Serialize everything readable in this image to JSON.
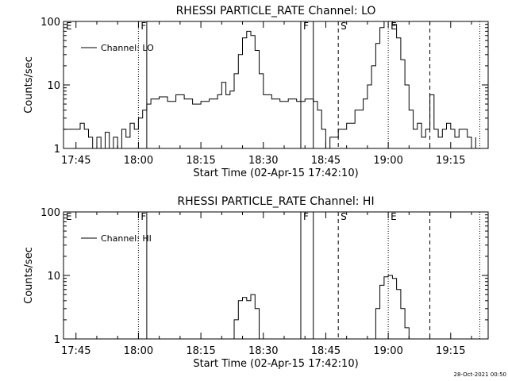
{
  "footer_timestamp": "28-Oct-2021 00:50",
  "chart_data": [
    {
      "type": "line",
      "title": "RHESSI PARTICLE_RATE Channel: LO",
      "xlabel": "Start Time (02-Apr-15 17:42:10)",
      "ylabel": "Counts/sec",
      "yscale": "log",
      "ylim": [
        1,
        100
      ],
      "xlim": [
        "17:42",
        "19:24"
      ],
      "x_tick_labels": [
        "17:45",
        "18:00",
        "18:15",
        "18:30",
        "18:45",
        "19:00",
        "19:15"
      ],
      "y_tick_labels": [
        "1",
        "10",
        "100"
      ],
      "legend": {
        "placement": "top-left",
        "entries": [
          "Channel: LO"
        ]
      },
      "markers": [
        {
          "label": "E",
          "time": "17:42",
          "style": "solid-label-only"
        },
        {
          "label": "F",
          "time": "18:00",
          "style": "dotted"
        },
        {
          "label": "",
          "time": "18:02",
          "style": "solid"
        },
        {
          "label": "F",
          "time": "18:39",
          "style": "solid"
        },
        {
          "label": "",
          "time": "18:42",
          "style": "solid"
        },
        {
          "label": "S",
          "time": "18:48",
          "style": "dashed"
        },
        {
          "label": "E",
          "time": "19:00",
          "style": "dotted"
        },
        {
          "label": "",
          "time": "19:10",
          "style": "dashed"
        },
        {
          "label": "",
          "time": "19:22",
          "style": "dotted"
        }
      ],
      "series": [
        {
          "name": "Channel: LO",
          "points": [
            [
              "17:42",
              2
            ],
            [
              "17:45",
              2
            ],
            [
              "17:46",
              2.5
            ],
            [
              "17:47",
              2
            ],
            [
              "17:48",
              1.5
            ],
            [
              "17:49",
              1
            ],
            [
              "17:50",
              1.5
            ],
            [
              "17:51",
              1
            ],
            [
              "17:52",
              1.8
            ],
            [
              "17:53",
              1
            ],
            [
              "17:54",
              1.5
            ],
            [
              "17:55",
              1
            ],
            [
              "17:56",
              2
            ],
            [
              "17:57",
              1.5
            ],
            [
              "17:58",
              2.5
            ],
            [
              "17:59",
              2
            ],
            [
              "18:00",
              3
            ],
            [
              "18:01",
              4
            ],
            [
              "18:02",
              5
            ],
            [
              "18:03",
              6
            ],
            [
              "18:05",
              6.5
            ],
            [
              "18:07",
              5.5
            ],
            [
              "18:09",
              7
            ],
            [
              "18:11",
              6
            ],
            [
              "18:13",
              5
            ],
            [
              "18:15",
              5.5
            ],
            [
              "18:17",
              6
            ],
            [
              "18:19",
              7
            ],
            [
              "18:20",
              11
            ],
            [
              "18:21",
              7
            ],
            [
              "18:22",
              8
            ],
            [
              "18:23",
              15
            ],
            [
              "18:24",
              30
            ],
            [
              "18:25",
              55
            ],
            [
              "18:26",
              70
            ],
            [
              "18:27",
              60
            ],
            [
              "18:28",
              35
            ],
            [
              "18:29",
              15
            ],
            [
              "18:30",
              7
            ],
            [
              "18:32",
              6
            ],
            [
              "18:34",
              5.5
            ],
            [
              "18:36",
              6
            ],
            [
              "18:38",
              5.5
            ],
            [
              "18:40",
              6
            ],
            [
              "18:42",
              5.5
            ],
            [
              "18:43",
              4
            ],
            [
              "18:44",
              2
            ],
            [
              "18:45",
              1
            ],
            [
              "18:46",
              1.5
            ],
            [
              "18:48",
              2
            ],
            [
              "18:50",
              2.5
            ],
            [
              "18:52",
              4
            ],
            [
              "18:54",
              6
            ],
            [
              "18:55",
              10
            ],
            [
              "18:56",
              20
            ],
            [
              "18:57",
              45
            ],
            [
              "18:58",
              80
            ],
            [
              "18:59",
              100
            ],
            [
              "19:00",
              100
            ],
            [
              "19:01",
              90
            ],
            [
              "19:02",
              55
            ],
            [
              "19:03",
              25
            ],
            [
              "19:04",
              10
            ],
            [
              "19:05",
              4
            ],
            [
              "19:06",
              2
            ],
            [
              "19:07",
              2.5
            ],
            [
              "19:08",
              1.5
            ],
            [
              "19:09",
              2
            ],
            [
              "19:10",
              7
            ],
            [
              "19:11",
              2
            ],
            [
              "19:12",
              1.5
            ],
            [
              "19:13",
              2
            ],
            [
              "19:14",
              2.5
            ],
            [
              "19:15",
              2
            ],
            [
              "19:16",
              1.5
            ],
            [
              "19:17",
              2
            ],
            [
              "19:18",
              2
            ],
            [
              "19:19",
              1.5
            ],
            [
              "19:20",
              1
            ],
            [
              "19:21",
              1.5
            ]
          ]
        }
      ]
    },
    {
      "type": "line",
      "title": "RHESSI PARTICLE_RATE Channel: HI",
      "xlabel": "Start Time (02-Apr-15 17:42:10)",
      "ylabel": "Counts/sec",
      "yscale": "log",
      "ylim": [
        1,
        100
      ],
      "xlim": [
        "17:42",
        "19:24"
      ],
      "x_tick_labels": [
        "17:45",
        "18:00",
        "18:15",
        "18:30",
        "18:45",
        "19:00",
        "19:15"
      ],
      "y_tick_labels": [
        "1",
        "10",
        "100"
      ],
      "legend": {
        "placement": "top-left",
        "entries": [
          "Channel: HI"
        ]
      },
      "markers": [
        {
          "label": "E",
          "time": "17:42",
          "style": "solid-label-only"
        },
        {
          "label": "F",
          "time": "18:00",
          "style": "dotted"
        },
        {
          "label": "",
          "time": "18:02",
          "style": "solid"
        },
        {
          "label": "F",
          "time": "18:39",
          "style": "solid"
        },
        {
          "label": "",
          "time": "18:42",
          "style": "solid"
        },
        {
          "label": "S",
          "time": "18:48",
          "style": "dashed"
        },
        {
          "label": "E",
          "time": "19:00",
          "style": "dotted"
        },
        {
          "label": "",
          "time": "19:10",
          "style": "dashed"
        },
        {
          "label": "",
          "time": "19:22",
          "style": "dotted"
        }
      ],
      "series": [
        {
          "name": "Channel: HI",
          "points": [
            [
              "18:22",
              1
            ],
            [
              "18:23",
              2
            ],
            [
              "18:24",
              4
            ],
            [
              "18:25",
              4.5
            ],
            [
              "18:26",
              4
            ],
            [
              "18:27",
              5
            ],
            [
              "18:28",
              3
            ],
            [
              "18:29",
              1
            ]
          ]
        },
        {
          "name": "Channel: HI",
          "points": [
            [
              "18:56",
              1
            ],
            [
              "18:57",
              3
            ],
            [
              "18:58",
              7
            ],
            [
              "18:59",
              9.5
            ],
            [
              "19:00",
              10
            ],
            [
              "19:01",
              9
            ],
            [
              "19:02",
              6
            ],
            [
              "19:03",
              3
            ],
            [
              "19:04",
              1.5
            ],
            [
              "19:05",
              1
            ]
          ]
        }
      ]
    }
  ]
}
